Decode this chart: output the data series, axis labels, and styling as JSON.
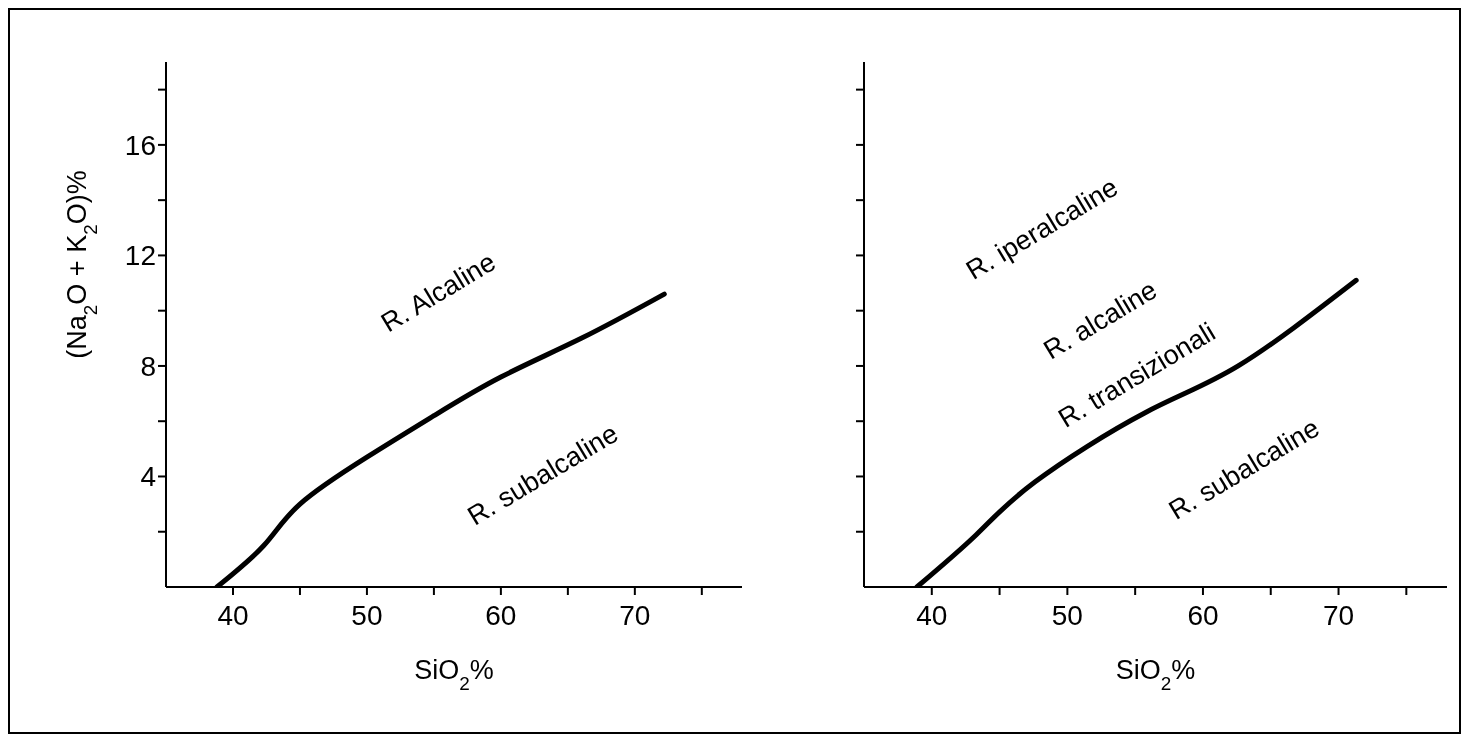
{
  "chart_data": [
    {
      "type": "line",
      "xlabel": "SiO$_{2}$%",
      "ylabel": "(Na$_{2}$O + K$_{2}$O)%",
      "xlim": [
        35,
        78
      ],
      "xticks": [
        40,
        {
          "value": 45,
          "label": null
        },
        50,
        {
          "value": 55,
          "label": null
        },
        60,
        {
          "value": 65,
          "label": null
        },
        70,
        {
          "value": 75,
          "label": null
        }
      ],
      "ylim": [
        0,
        19
      ],
      "yticks": [
        {
          "value": 2,
          "label": null
        },
        4,
        {
          "value": 6,
          "label": null
        },
        8,
        {
          "value": 10,
          "label": null
        },
        12,
        {
          "value": 14,
          "label": null
        },
        16,
        {
          "value": 18,
          "label": null
        }
      ],
      "marker": "none",
      "line_style": "solid",
      "series": [
        {
          "color": "#000000",
          "x": [
            38.8,
            42.3,
            45,
            50,
            55,
            60,
            66,
            72.2
          ],
          "values": [
            0,
            1.5,
            3,
            4.7,
            6.2,
            7.6,
            9,
            10.6
          ]
        }
      ],
      "annotations": [
        "R. Alcaline",
        "R. subalcaline"
      ]
    },
    {
      "type": "line",
      "xlabel": "SiO$_{2}$%",
      "xlim": [
        35,
        78
      ],
      "xticks": [
        40,
        {
          "value": 45,
          "label": null
        },
        50,
        {
          "value": 55,
          "label": null
        },
        60,
        {
          "value": 65,
          "label": null
        },
        70,
        {
          "value": 75,
          "label": null
        }
      ],
      "ylim": [
        0,
        19
      ],
      "yticks": [
        {
          "value": 2,
          "label": null
        },
        {
          "value": 4,
          "label": null
        },
        {
          "value": 6,
          "label": null
        },
        {
          "value": 8,
          "label": null
        },
        {
          "value": 10,
          "label": null
        },
        {
          "value": 12,
          "label": null
        },
        {
          "value": 14,
          "label": null
        },
        {
          "value": 16,
          "label": null
        },
        {
          "value": 18,
          "label": null
        }
      ],
      "tick_labels": "x",
      "marker": "none",
      "line_style": "solid",
      "series": [
        {
          "color": "#000000",
          "x": [
            38.9,
            43.3,
            47.6,
            55.7,
            62.6,
            71.3
          ],
          "values": [
            0,
            1.9,
            3.8,
            6.3,
            8,
            11.1
          ]
        }
      ],
      "annotations": [
        "R. iperalcaline",
        "R. alcaline",
        "R. transizionali",
        "R. subalcaline"
      ]
    }
  ]
}
